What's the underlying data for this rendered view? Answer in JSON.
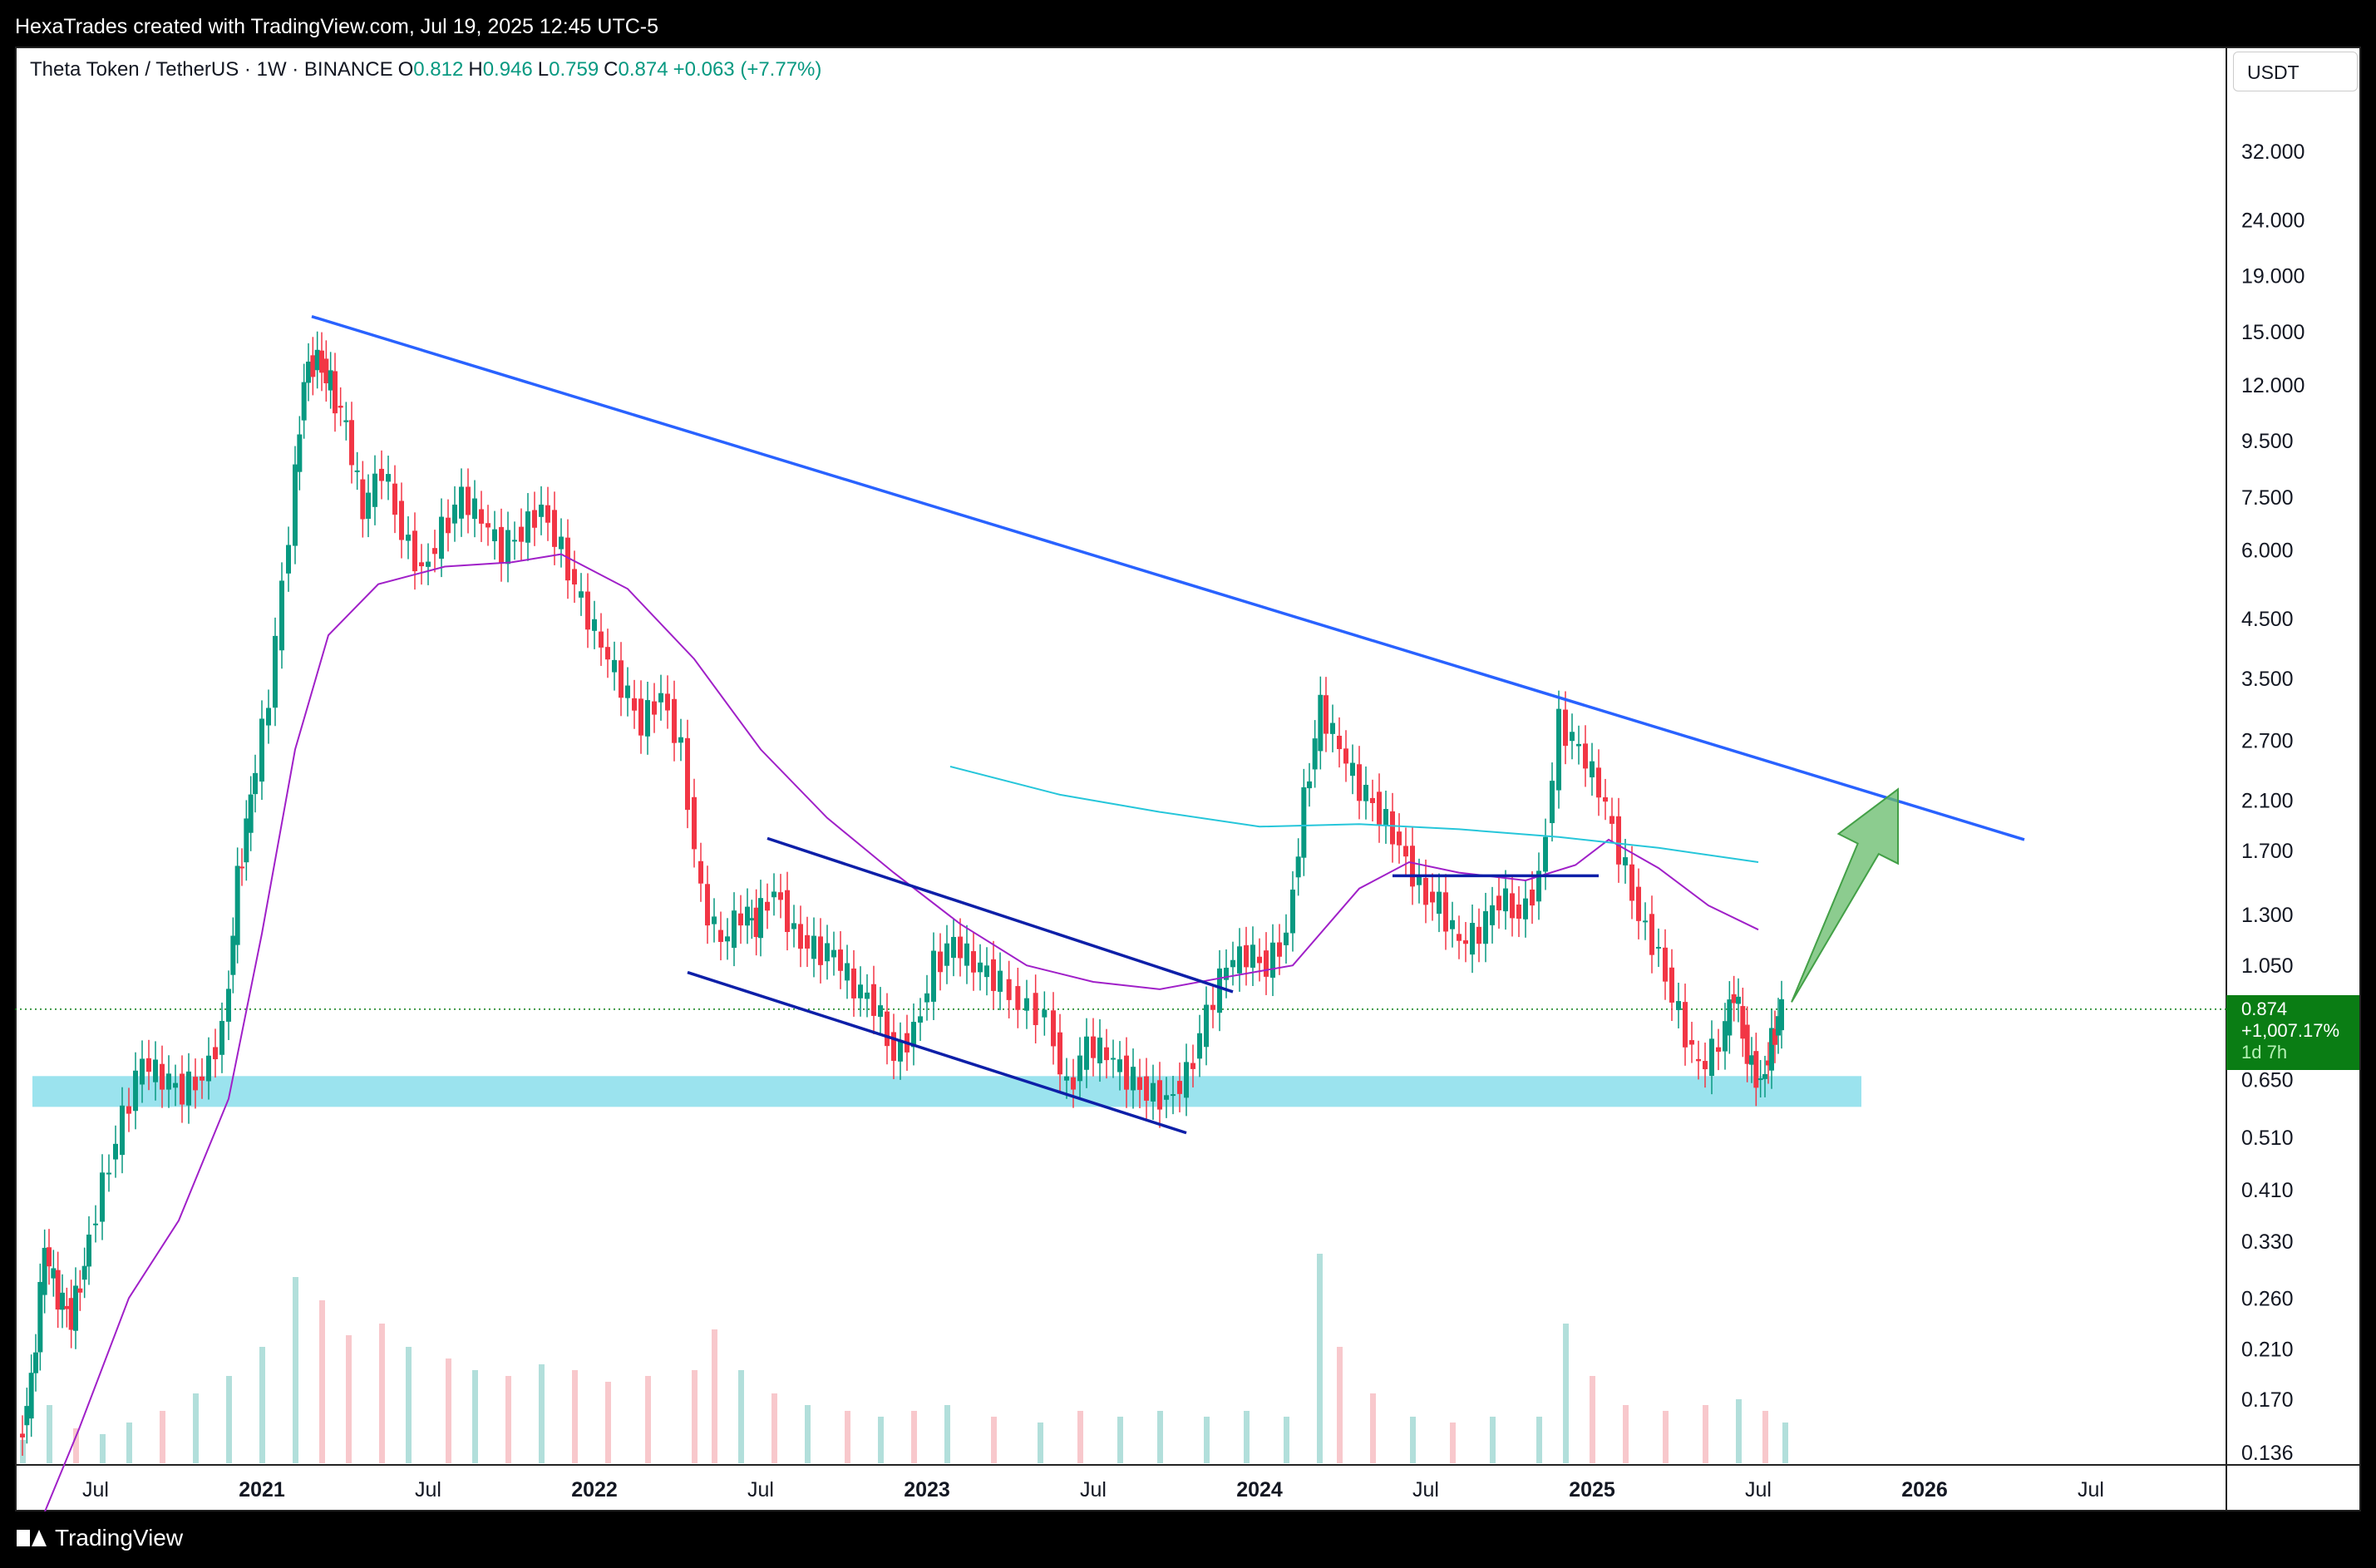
{
  "header": {
    "attribution": "HexaTrades created with TradingView.com, Jul 19, 2025 12:45 UTC-5"
  },
  "footer": {
    "brand": "TradingView"
  },
  "legend": {
    "symbol": "Theta Token / TetherUS · 1W · BINANCE",
    "open_label": "O",
    "open": "0.812",
    "high_label": "H",
    "high": "0.946",
    "low_label": "L",
    "low": "0.759",
    "close_label": "C",
    "close": "0.874",
    "change": "+0.063 (+7.77%)"
  },
  "currency_button": "USDT",
  "last_price": {
    "price": "0.874",
    "change": "+1,007.17%",
    "countdown": "1d 7h"
  },
  "colors": {
    "up": "#089981",
    "down": "#f23645",
    "trendline": "#2962ff",
    "channel": "#0d1fa8",
    "ma_purple": "#a020c8",
    "ma_teal": "#26c6da",
    "support_zone": "#9be3ee",
    "arrow": "#66bb6a",
    "price_tag": "#0a7d14"
  },
  "chart_data": {
    "type": "candlestick",
    "scale": "log",
    "y_ticks": [
      "32.000",
      "24.000",
      "19.000",
      "15.000",
      "12.000",
      "9.500",
      "7.500",
      "6.000",
      "4.500",
      "3.500",
      "2.700",
      "2.100",
      "1.700",
      "1.300",
      "1.050",
      "0.650",
      "0.510",
      "0.410",
      "0.330",
      "0.260",
      "0.210",
      "0.170",
      "0.136"
    ],
    "x_ticks": [
      {
        "label": "Jul",
        "t": 2020.5,
        "bold": false
      },
      {
        "label": "2021",
        "t": 2021.0,
        "bold": true
      },
      {
        "label": "Jul",
        "t": 2021.5,
        "bold": false
      },
      {
        "label": "2022",
        "t": 2022.0,
        "bold": true
      },
      {
        "label": "Jul",
        "t": 2022.5,
        "bold": false
      },
      {
        "label": "2023",
        "t": 2023.0,
        "bold": true
      },
      {
        "label": "Jul",
        "t": 2023.5,
        "bold": false
      },
      {
        "label": "2024",
        "t": 2024.0,
        "bold": true
      },
      {
        "label": "Jul",
        "t": 2024.5,
        "bold": false
      },
      {
        "label": "2025",
        "t": 2025.0,
        "bold": true
      },
      {
        "label": "Jul",
        "t": 2025.5,
        "bold": false
      },
      {
        "label": "2026",
        "t": 2026.0,
        "bold": true
      },
      {
        "label": "Jul",
        "t": 2026.5,
        "bold": false
      }
    ],
    "price_path": [
      [
        2020.28,
        0.14
      ],
      [
        2020.32,
        0.18
      ],
      [
        2020.36,
        0.32
      ],
      [
        2020.4,
        0.26
      ],
      [
        2020.44,
        0.24
      ],
      [
        2020.48,
        0.3
      ],
      [
        2020.54,
        0.42
      ],
      [
        2020.6,
        0.55
      ],
      [
        2020.66,
        0.7
      ],
      [
        2020.72,
        0.65
      ],
      [
        2020.78,
        0.62
      ],
      [
        2020.84,
        0.66
      ],
      [
        2020.9,
        0.8
      ],
      [
        2020.94,
        1.5
      ],
      [
        2020.98,
        2.1
      ],
      [
        2021.04,
        3.2
      ],
      [
        2021.1,
        6.5
      ],
      [
        2021.14,
        12.5
      ],
      [
        2021.18,
        13.5
      ],
      [
        2021.22,
        12.0
      ],
      [
        2021.27,
        10.0
      ],
      [
        2021.32,
        7.0
      ],
      [
        2021.38,
        8.5
      ],
      [
        2021.44,
        6.5
      ],
      [
        2021.5,
        5.5
      ],
      [
        2021.56,
        6.5
      ],
      [
        2021.62,
        7.5
      ],
      [
        2021.68,
        6.8
      ],
      [
        2021.74,
        6.0
      ],
      [
        2021.8,
        6.5
      ],
      [
        2021.86,
        7.2
      ],
      [
        2021.92,
        6.0
      ],
      [
        2021.98,
        4.8
      ],
      [
        2022.04,
        4.0
      ],
      [
        2022.1,
        3.4
      ],
      [
        2022.16,
        2.9
      ],
      [
        2022.22,
        3.3
      ],
      [
        2022.28,
        2.6
      ],
      [
        2022.34,
        1.4
      ],
      [
        2022.4,
        1.15
      ],
      [
        2022.46,
        1.3
      ],
      [
        2022.5,
        1.25
      ],
      [
        2022.56,
        1.45
      ],
      [
        2022.62,
        1.2
      ],
      [
        2022.68,
        1.12
      ],
      [
        2022.74,
        1.1
      ],
      [
        2022.8,
        0.95
      ],
      [
        2022.86,
        0.9
      ],
      [
        2022.92,
        0.72
      ],
      [
        2022.98,
        0.8
      ],
      [
        2023.04,
        1.05
      ],
      [
        2023.1,
        1.15
      ],
      [
        2023.16,
        1.05
      ],
      [
        2023.22,
        1.0
      ],
      [
        2023.3,
        0.9
      ],
      [
        2023.38,
        0.85
      ],
      [
        2023.44,
        0.62
      ],
      [
        2023.5,
        0.75
      ],
      [
        2023.56,
        0.72
      ],
      [
        2023.62,
        0.66
      ],
      [
        2023.68,
        0.62
      ],
      [
        2023.74,
        0.6
      ],
      [
        2023.8,
        0.66
      ],
      [
        2023.86,
        0.85
      ],
      [
        2023.92,
        1.05
      ],
      [
        2023.98,
        1.1
      ],
      [
        2024.04,
        1.05
      ],
      [
        2024.1,
        1.2
      ],
      [
        2024.15,
        2.1
      ],
      [
        2024.2,
        3.1
      ],
      [
        2024.26,
        2.6
      ],
      [
        2024.32,
        2.2
      ],
      [
        2024.38,
        2.0
      ],
      [
        2024.44,
        1.75
      ],
      [
        2024.5,
        1.45
      ],
      [
        2024.56,
        1.35
      ],
      [
        2024.62,
        1.15
      ],
      [
        2024.68,
        1.2
      ],
      [
        2024.74,
        1.4
      ],
      [
        2024.8,
        1.3
      ],
      [
        2024.86,
        1.5
      ],
      [
        2024.92,
        2.9
      ],
      [
        2024.98,
        2.6
      ],
      [
        2025.04,
        2.2
      ],
      [
        2025.1,
        1.7
      ],
      [
        2025.16,
        1.3
      ],
      [
        2025.22,
        1.1
      ],
      [
        2025.28,
        0.85
      ],
      [
        2025.34,
        0.68
      ],
      [
        2025.4,
        0.75
      ],
      [
        2025.44,
        0.95
      ],
      [
        2025.48,
        0.72
      ],
      [
        2025.52,
        0.64
      ],
      [
        2025.55,
        0.76
      ],
      [
        2025.58,
        0.874
      ]
    ],
    "ma_purple": [
      [
        2020.33,
        0.1
      ],
      [
        2020.45,
        0.15
      ],
      [
        2020.6,
        0.26
      ],
      [
        2020.75,
        0.36
      ],
      [
        2020.9,
        0.6
      ],
      [
        2021.0,
        1.2
      ],
      [
        2021.1,
        2.6
      ],
      [
        2021.2,
        4.2
      ],
      [
        2021.35,
        5.2
      ],
      [
        2021.55,
        5.6
      ],
      [
        2021.75,
        5.7
      ],
      [
        2021.9,
        5.9
      ],
      [
        2022.1,
        5.1
      ],
      [
        2022.3,
        3.8
      ],
      [
        2022.5,
        2.6
      ],
      [
        2022.7,
        1.95
      ],
      [
        2022.9,
        1.55
      ],
      [
        2023.1,
        1.25
      ],
      [
        2023.3,
        1.05
      ],
      [
        2023.5,
        0.98
      ],
      [
        2023.7,
        0.95
      ],
      [
        2023.9,
        1.0
      ],
      [
        2024.1,
        1.05
      ],
      [
        2024.3,
        1.45
      ],
      [
        2024.45,
        1.62
      ],
      [
        2024.6,
        1.55
      ],
      [
        2024.8,
        1.5
      ],
      [
        2024.95,
        1.6
      ],
      [
        2025.05,
        1.78
      ],
      [
        2025.2,
        1.58
      ],
      [
        2025.35,
        1.35
      ],
      [
        2025.5,
        1.22
      ]
    ],
    "ma_teal": [
      [
        2023.07,
        2.42
      ],
      [
        2023.4,
        2.15
      ],
      [
        2023.7,
        2.0
      ],
      [
        2024.0,
        1.88
      ],
      [
        2024.3,
        1.9
      ],
      [
        2024.6,
        1.86
      ],
      [
        2024.9,
        1.8
      ],
      [
        2025.2,
        1.72
      ],
      [
        2025.5,
        1.62
      ]
    ],
    "trendline": [
      [
        2021.15,
        16.0
      ],
      [
        2026.3,
        1.78
      ]
    ],
    "channel_upper": [
      [
        2022.52,
        1.79
      ],
      [
        2023.92,
        0.94
      ]
    ],
    "channel_lower": [
      [
        2022.28,
        1.02
      ],
      [
        2023.78,
        0.52
      ]
    ],
    "range_line": [
      [
        2024.4,
        1.53
      ],
      [
        2025.02,
        1.53
      ]
    ],
    "support_zone": {
      "from": [
        2020.31,
        2025.81
      ],
      "low": 0.58,
      "high": 0.66
    },
    "last_price_level": 0.874,
    "volume": [
      [
        2020.28,
        0.4,
        "up"
      ],
      [
        2020.36,
        1.0,
        "up"
      ],
      [
        2020.44,
        0.6,
        "down"
      ],
      [
        2020.52,
        0.5,
        "up"
      ],
      [
        2020.6,
        0.7,
        "up"
      ],
      [
        2020.7,
        0.9,
        "down"
      ],
      [
        2020.8,
        1.2,
        "up"
      ],
      [
        2020.9,
        1.5,
        "up"
      ],
      [
        2021.0,
        2.0,
        "up"
      ],
      [
        2021.1,
        3.2,
        "up"
      ],
      [
        2021.18,
        2.8,
        "down"
      ],
      [
        2021.26,
        2.2,
        "down"
      ],
      [
        2021.36,
        2.4,
        "down"
      ],
      [
        2021.44,
        2.0,
        "up"
      ],
      [
        2021.56,
        1.8,
        "down"
      ],
      [
        2021.64,
        1.6,
        "up"
      ],
      [
        2021.74,
        1.5,
        "down"
      ],
      [
        2021.84,
        1.7,
        "up"
      ],
      [
        2021.94,
        1.6,
        "down"
      ],
      [
        2022.04,
        1.4,
        "down"
      ],
      [
        2022.16,
        1.5,
        "down"
      ],
      [
        2022.3,
        1.6,
        "down"
      ],
      [
        2022.36,
        2.3,
        "down"
      ],
      [
        2022.44,
        1.6,
        "up"
      ],
      [
        2022.54,
        1.2,
        "down"
      ],
      [
        2022.64,
        1.0,
        "up"
      ],
      [
        2022.76,
        0.9,
        "down"
      ],
      [
        2022.86,
        0.8,
        "up"
      ],
      [
        2022.96,
        0.9,
        "down"
      ],
      [
        2023.06,
        1.0,
        "up"
      ],
      [
        2023.2,
        0.8,
        "down"
      ],
      [
        2023.34,
        0.7,
        "up"
      ],
      [
        2023.46,
        0.9,
        "down"
      ],
      [
        2023.58,
        0.8,
        "up"
      ],
      [
        2023.7,
        0.9,
        "up"
      ],
      [
        2023.84,
        0.8,
        "up"
      ],
      [
        2023.96,
        0.9,
        "up"
      ],
      [
        2024.08,
        0.8,
        "up"
      ],
      [
        2024.18,
        3.6,
        "up"
      ],
      [
        2024.24,
        2.0,
        "down"
      ],
      [
        2024.34,
        1.2,
        "down"
      ],
      [
        2024.46,
        0.8,
        "up"
      ],
      [
        2024.58,
        0.7,
        "down"
      ],
      [
        2024.7,
        0.8,
        "up"
      ],
      [
        2024.84,
        0.8,
        "up"
      ],
      [
        2024.92,
        2.4,
        "up"
      ],
      [
        2025.0,
        1.5,
        "down"
      ],
      [
        2025.1,
        1.0,
        "down"
      ],
      [
        2025.22,
        0.9,
        "down"
      ],
      [
        2025.34,
        1.0,
        "down"
      ],
      [
        2025.44,
        1.1,
        "up"
      ],
      [
        2025.52,
        0.9,
        "down"
      ],
      [
        2025.58,
        0.7,
        "up"
      ]
    ]
  }
}
